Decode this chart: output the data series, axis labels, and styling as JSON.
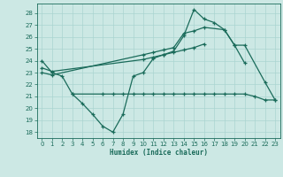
{
  "title": "",
  "xlabel": "Humidex (Indice chaleur)",
  "bg_color": "#cce8e4",
  "grid_color": "#aad4d0",
  "line_color": "#1a6b5a",
  "xlim": [
    -0.5,
    23.5
  ],
  "ylim": [
    17.5,
    28.8
  ],
  "xticks": [
    0,
    1,
    2,
    3,
    4,
    5,
    6,
    7,
    8,
    9,
    10,
    11,
    12,
    13,
    14,
    15,
    16,
    17,
    18,
    19,
    20,
    21,
    22,
    23
  ],
  "yticks": [
    18,
    19,
    20,
    21,
    22,
    23,
    24,
    25,
    26,
    27,
    28
  ],
  "s1_x": [
    0,
    1,
    2,
    3,
    4,
    5,
    6,
    7,
    8,
    9,
    10,
    11,
    12,
    13,
    14,
    15,
    16,
    17,
    18,
    19,
    20
  ],
  "s1_y": [
    24.0,
    23.0,
    22.7,
    21.2,
    20.4,
    19.5,
    18.5,
    18.0,
    19.5,
    22.7,
    23.0,
    24.2,
    24.5,
    24.8,
    26.1,
    28.3,
    27.5,
    27.2,
    26.6,
    25.3,
    23.8
  ],
  "s2_x": [
    0,
    1,
    10,
    11,
    12,
    13,
    14,
    15,
    16,
    18,
    19,
    20,
    22,
    23
  ],
  "s2_y": [
    23.0,
    22.8,
    24.5,
    24.7,
    24.9,
    25.1,
    26.3,
    26.5,
    26.8,
    26.6,
    25.3,
    25.3,
    22.2,
    20.7
  ],
  "s3_x": [
    0,
    1,
    10,
    11,
    12,
    13,
    14,
    15,
    16
  ],
  "s3_y": [
    23.4,
    23.1,
    24.1,
    24.3,
    24.5,
    24.7,
    24.9,
    25.1,
    25.4
  ],
  "s4_x": [
    3,
    6,
    7,
    8,
    9,
    10,
    11,
    12,
    13,
    14,
    15,
    16,
    17,
    18,
    19,
    20,
    21,
    22,
    23
  ],
  "s4_y": [
    21.2,
    21.2,
    21.2,
    21.2,
    21.2,
    21.2,
    21.2,
    21.2,
    21.2,
    21.2,
    21.2,
    21.2,
    21.2,
    21.2,
    21.2,
    21.2,
    21.0,
    20.7,
    20.7
  ]
}
